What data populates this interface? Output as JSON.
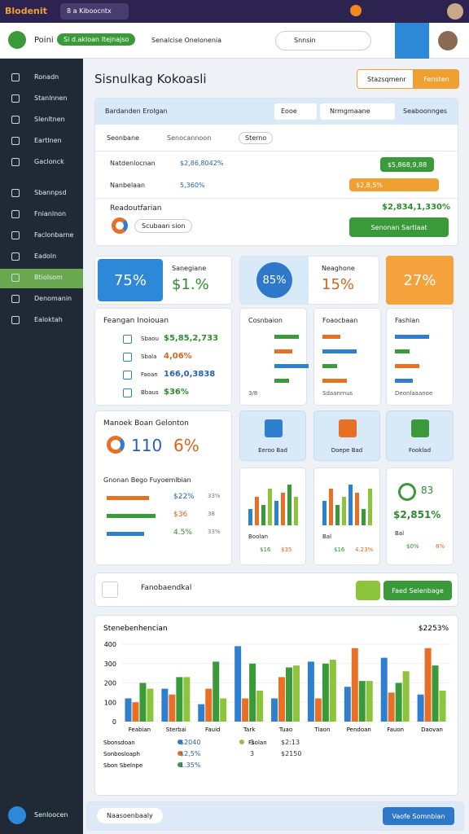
{
  "browser": {
    "tab": "Blodenit",
    "tab2": "8 a Kiboocntx"
  },
  "header": {
    "brand": "Poini",
    "badge": "Si d.akloan ltejnajso",
    "info": "Senalcise Onelonenia",
    "search": "Snnsin"
  },
  "sidebar": {
    "items": [
      "Ronadn",
      "Stanlnnen",
      "Slenltnen",
      "Eartlnen",
      "Gaclonck",
      "Sbannpsd",
      "Fnianlnon",
      "Faclonbarne",
      "Eadoln",
      "Btiolsom",
      "Denomanin",
      "Ealoktah"
    ],
    "footer": "Senloocen"
  },
  "page": {
    "title": "Sisnulkag Kokoasli",
    "btn1": "Stazsqmenr",
    "btn2": "Fensten"
  },
  "filters": {
    "heading": "Bardanden Erolgan",
    "sel1": "Eooe",
    "sel2": "Nrmgmaane",
    "sel3": "Seaboonnges",
    "tab1": "Seonbane",
    "tab2": "Senocannoon",
    "tab3": "Sterno",
    "rows": [
      {
        "label": "Natdenlocnan",
        "value": "$2,86,8042%",
        "action": "$5,868,9,88"
      },
      {
        "label": "Nanbelaan",
        "value": "5,360%",
        "action": "$2,8,5%"
      }
    ],
    "result_label": "Readoutfarian",
    "result_pill": "Scubaan sion",
    "result_value": "$2,834,1,330%",
    "result_btn": "Senonan Sartlaat"
  },
  "tiles": {
    "t1": "75%",
    "t1_label": "Sanegiane",
    "t1_value": "$1.%",
    "t2": "85%",
    "t2_label": "Neaghone",
    "t2_value": "15%",
    "t3": "27%"
  },
  "list_card": {
    "title": "Feangan Inoiouan",
    "rows": [
      [
        "Sbaou",
        "$5,85,2,733"
      ],
      [
        "Sbala",
        "4,06%"
      ],
      [
        "Faoan",
        "166,0,3838"
      ],
      [
        "Bbaus",
        "$36%"
      ]
    ]
  },
  "small_cards": [
    {
      "title": "Cosnbaion",
      "foot": "3/8"
    },
    {
      "title": "Foaocbaan",
      "foot": "Sdaanrnus"
    },
    {
      "title": "Fashlan",
      "foot": "Deonlaaanoe"
    }
  ],
  "metric_card": {
    "title": "Manoek Boan Gelonton",
    "v1": "110",
    "v2": "6%",
    "sub": "Gnonan Bego Fuyoemlbian",
    "rows": [
      [
        "$22%",
        "33%"
      ],
      [
        "$36",
        "38"
      ],
      [
        "4.5%",
        "33%"
      ]
    ]
  },
  "feature_tiles": [
    "Eeroo Bad",
    "Doepe Bad",
    "Fooklad"
  ],
  "minis": [
    {
      "label": "Boolan",
      "a": "$16",
      "b": "$35",
      "values": [
        4,
        7,
        5,
        9,
        6,
        8,
        10,
        7
      ]
    },
    {
      "label": "Bal",
      "a": "$16",
      "b": "4.23%",
      "values": [
        6,
        9,
        5,
        7,
        10,
        8,
        4,
        9
      ]
    }
  ],
  "score_card": {
    "top": "83",
    "value": "$2,851%",
    "label": "Bal",
    "a": "$0%",
    "b": "8%"
  },
  "toolbar": {
    "title": "Fanobaendkal",
    "btn": "Faed Selenbage"
  },
  "bar_chart": {
    "type": "bar",
    "title": "Stenebenhencian",
    "corner": "$2253%",
    "categories": [
      "Feabian",
      "Sterbai",
      "Fauid",
      "Tark",
      "Tuao",
      "Tiaon",
      "Pendoan",
      "Fauon",
      "Daovan"
    ],
    "series": [
      {
        "name": "Sbonsdoan",
        "color": "#2f7fd1",
        "values": [
          120,
          170,
          90,
          390,
          120,
          310,
          180,
          330,
          140
        ]
      },
      {
        "name": "Sonbosloaph",
        "color": "#e86f24",
        "values": [
          100,
          140,
          170,
          120,
          230,
          120,
          380,
          150,
          380
        ]
      },
      {
        "name": "Sbon Sbelnpe",
        "color": "#3a9a3a",
        "values": [
          200,
          230,
          310,
          300,
          280,
          300,
          210,
          200,
          290
        ]
      },
      {
        "name": "Fsolan",
        "color": "#8cc43c",
        "values": [
          170,
          230,
          120,
          160,
          290,
          320,
          210,
          260,
          160
        ]
      }
    ],
    "ylim": [
      0,
      400
    ],
    "yticks": [
      0,
      100,
      200,
      300,
      400
    ],
    "legend_values": [
      [
        "$2040",
        "3",
        "$2:13"
      ],
      [
        "$2,5%",
        "3",
        "$2150"
      ],
      [
        "1.35%"
      ]
    ]
  },
  "footer": {
    "text": "Naasoenbaaly",
    "btn": "Vaofe Somnbian"
  }
}
